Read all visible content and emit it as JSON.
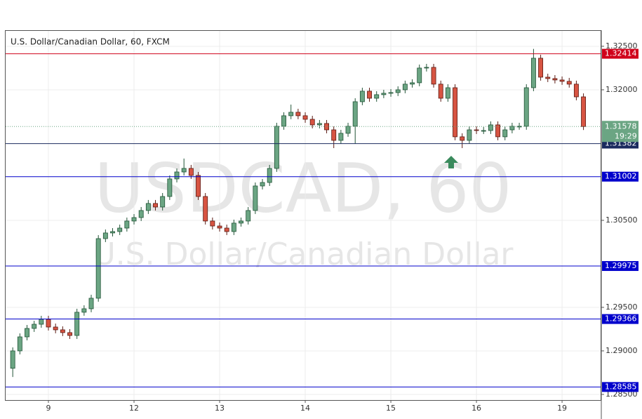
{
  "chart_data": {
    "type": "candlestick",
    "title": "U.S. Dollar/Canadian Dollar, 60, FXCM",
    "watermark": [
      "USDCAD, 60",
      "U.S. Dollar/Canadian Dollar"
    ],
    "xlim": [
      -1,
      82.5
    ],
    "xticks": [
      {
        "value": 5,
        "label": "9"
      },
      {
        "value": 17,
        "label": "12"
      },
      {
        "value": 29,
        "label": "13"
      },
      {
        "value": 41,
        "label": "14"
      },
      {
        "value": 53,
        "label": "15"
      },
      {
        "value": 65,
        "label": "16"
      },
      {
        "value": 77,
        "label": "19"
      }
    ],
    "ylim": [
      1.28435,
      1.32677
    ],
    "yticks": [
      {
        "value": 1.325,
        "label": "1.32500"
      },
      {
        "value": 1.32,
        "label": "1.32000"
      },
      {
        "value": 1.305,
        "label": "1.30500"
      },
      {
        "value": 1.295,
        "label": "1.29500"
      },
      {
        "value": 1.29,
        "label": "1.29000"
      },
      {
        "value": 1.285,
        "label": "1.28500"
      }
    ],
    "grid": true,
    "up_color": "#6ba583",
    "down_color": "#d75442",
    "open": [
      1.288,
      1.29,
      1.29161,
      1.29258,
      1.29306,
      1.29363,
      1.29274,
      1.29242,
      1.2921,
      1.29177,
      1.29444,
      1.29484,
      1.29605,
      1.3029,
      1.30355,
      1.30371,
      1.30411,
      1.30492,
      1.30532,
      1.30613,
      1.30694,
      1.30653,
      1.30774,
      1.30976,
      1.31056,
      1.31097,
      1.31016,
      1.30774,
      1.30492,
      1.30435,
      1.30411,
      1.30371,
      1.30468,
      1.30492,
      1.30613,
      1.30895,
      1.30935,
      1.31097,
      1.31581,
      1.31702,
      1.31742,
      1.31702,
      1.31661,
      1.31597,
      1.31613,
      1.3154,
      1.31419,
      1.315,
      1.31581,
      1.31863,
      1.31984,
      1.31903,
      1.31944,
      1.3196,
      1.31968,
      1.32,
      1.32065,
      1.32081,
      1.3225,
      1.32258,
      1.32065,
      1.31903,
      1.32024,
      1.3146,
      1.31419,
      1.3154,
      1.31532,
      1.31532,
      1.31597,
      1.3146,
      1.3154,
      1.31581,
      1.31581,
      1.32024,
      1.32363,
      1.32145,
      1.32129,
      1.32113,
      1.32097,
      1.32065,
      1.31919
    ],
    "high": [
      1.2904,
      1.29201,
      1.29298,
      1.29346,
      1.29403,
      1.29403,
      1.29314,
      1.29282,
      1.2925,
      1.29484,
      1.29524,
      1.29645,
      1.3033,
      1.30395,
      1.30411,
      1.30451,
      1.30532,
      1.30572,
      1.30653,
      1.30734,
      1.30734,
      1.30814,
      1.31016,
      1.31096,
      1.3121,
      1.31137,
      1.31056,
      1.30814,
      1.30532,
      1.30475,
      1.30451,
      1.30508,
      1.30532,
      1.30653,
      1.30935,
      1.30975,
      1.31137,
      1.31621,
      1.31742,
      1.3183,
      1.31782,
      1.31742,
      1.31701,
      1.31653,
      1.31653,
      1.3158,
      1.3154,
      1.31621,
      1.31903,
      1.32024,
      1.32024,
      1.31984,
      1.32,
      1.32008,
      1.3204,
      1.32105,
      1.32121,
      1.3229,
      1.32298,
      1.32298,
      1.32105,
      1.32064,
      1.32064,
      1.315,
      1.3158,
      1.3158,
      1.31572,
      1.31637,
      1.31637,
      1.3158,
      1.31621,
      1.31621,
      1.32064,
      1.3247,
      1.32403,
      1.32185,
      1.32169,
      1.32153,
      1.32137,
      1.32105,
      1.31959
    ],
    "low": [
      1.287,
      1.2896,
      1.29121,
      1.29218,
      1.29266,
      1.29234,
      1.29202,
      1.2917,
      1.29137,
      1.29137,
      1.29404,
      1.29444,
      1.29565,
      1.3025,
      1.30315,
      1.30331,
      1.30371,
      1.30452,
      1.30492,
      1.30573,
      1.30613,
      1.30613,
      1.30734,
      1.30936,
      1.31016,
      1.30976,
      1.30734,
      1.30452,
      1.30395,
      1.30371,
      1.30331,
      1.30331,
      1.30428,
      1.30452,
      1.30573,
      1.30855,
      1.30895,
      1.31057,
      1.31541,
      1.31662,
      1.31662,
      1.31621,
      1.31557,
      1.31557,
      1.315,
      1.3133,
      1.31379,
      1.3146,
      1.3138,
      1.31823,
      1.31863,
      1.31863,
      1.31904,
      1.3192,
      1.31928,
      1.3196,
      1.32025,
      1.32041,
      1.3221,
      1.32025,
      1.31863,
      1.31863,
      1.3142,
      1.3133,
      1.31379,
      1.31492,
      1.31492,
      1.31492,
      1.3142,
      1.3142,
      1.315,
      1.31541,
      1.31541,
      1.31984,
      1.32105,
      1.32089,
      1.32073,
      1.32057,
      1.32025,
      1.31879,
      1.31538
    ],
    "close": [
      1.29,
      1.29161,
      1.29258,
      1.29306,
      1.29363,
      1.29274,
      1.29242,
      1.2921,
      1.29177,
      1.29444,
      1.29484,
      1.29605,
      1.3029,
      1.30355,
      1.30371,
      1.30411,
      1.30492,
      1.30532,
      1.30613,
      1.30694,
      1.30653,
      1.30774,
      1.30976,
      1.31056,
      1.31097,
      1.31016,
      1.30774,
      1.30492,
      1.30435,
      1.30411,
      1.30371,
      1.30468,
      1.30492,
      1.30613,
      1.30895,
      1.30935,
      1.31097,
      1.31581,
      1.31702,
      1.31742,
      1.31702,
      1.31661,
      1.31597,
      1.31613,
      1.3154,
      1.31419,
      1.315,
      1.31581,
      1.31863,
      1.31984,
      1.31903,
      1.31944,
      1.3196,
      1.31968,
      1.32,
      1.32065,
      1.32081,
      1.3225,
      1.32258,
      1.32065,
      1.31903,
      1.32024,
      1.3146,
      1.31419,
      1.3154,
      1.31532,
      1.31532,
      1.31597,
      1.3146,
      1.3154,
      1.31581,
      1.31581,
      1.32024,
      1.32363,
      1.32145,
      1.32129,
      1.32113,
      1.32097,
      1.32065,
      1.31919,
      1.31578
    ],
    "levels": [
      {
        "value": 1.32414,
        "color": "#d0021b"
      },
      {
        "value": 1.31382,
        "color": "#1a2a5e"
      },
      {
        "value": 1.31002,
        "color": "#0000cc"
      },
      {
        "value": 1.29975,
        "color": "#0000cc"
      },
      {
        "value": 1.29366,
        "color": "#0000cc"
      },
      {
        "value": 1.28585,
        "color": "#0000cc"
      }
    ],
    "last_price": 1.31578,
    "last_price_color": "#6ba583",
    "countdown": "19:29"
  }
}
